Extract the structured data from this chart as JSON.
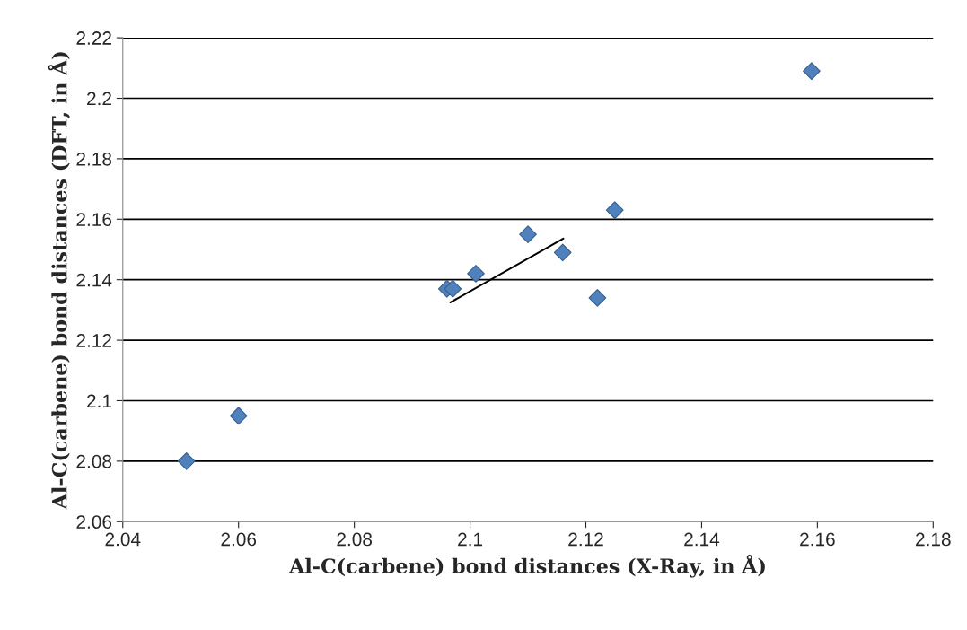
{
  "chart_data": {
    "type": "scatter",
    "xlabel": "Al-C(carbene) bond distances (X-Ray, in Å)",
    "ylabel": "Al-C(carbene) bond distances (DFT, in Å)",
    "series": [
      {
        "color": "#4f81bd",
        "marker": "diamond",
        "x": [
          2.051,
          2.06,
          2.096,
          2.097,
          2.101,
          2.11,
          2.116,
          2.122,
          2.125,
          2.159
        ],
        "values": [
          2.08,
          2.095,
          2.137,
          2.137,
          2.142,
          2.155,
          2.149,
          2.134,
          2.163,
          2.209
        ]
      },
      {
        "type": "line",
        "color": "#000000",
        "line_style": "solid",
        "x": [
          2.0966,
          2.1161
        ],
        "values": [
          2.1325,
          2.1536
        ]
      }
    ],
    "xlim": [
      2.04,
      2.18
    ],
    "xticks": [
      2.04,
      2.06,
      2.08,
      2.1,
      2.12,
      2.14,
      2.16,
      2.18
    ],
    "ylim": [
      2.06,
      2.22
    ],
    "yticks": [
      2.06,
      2.08,
      2.1,
      2.12,
      2.14,
      2.16,
      2.18,
      2.2,
      2.22
    ],
    "grid": "y"
  }
}
